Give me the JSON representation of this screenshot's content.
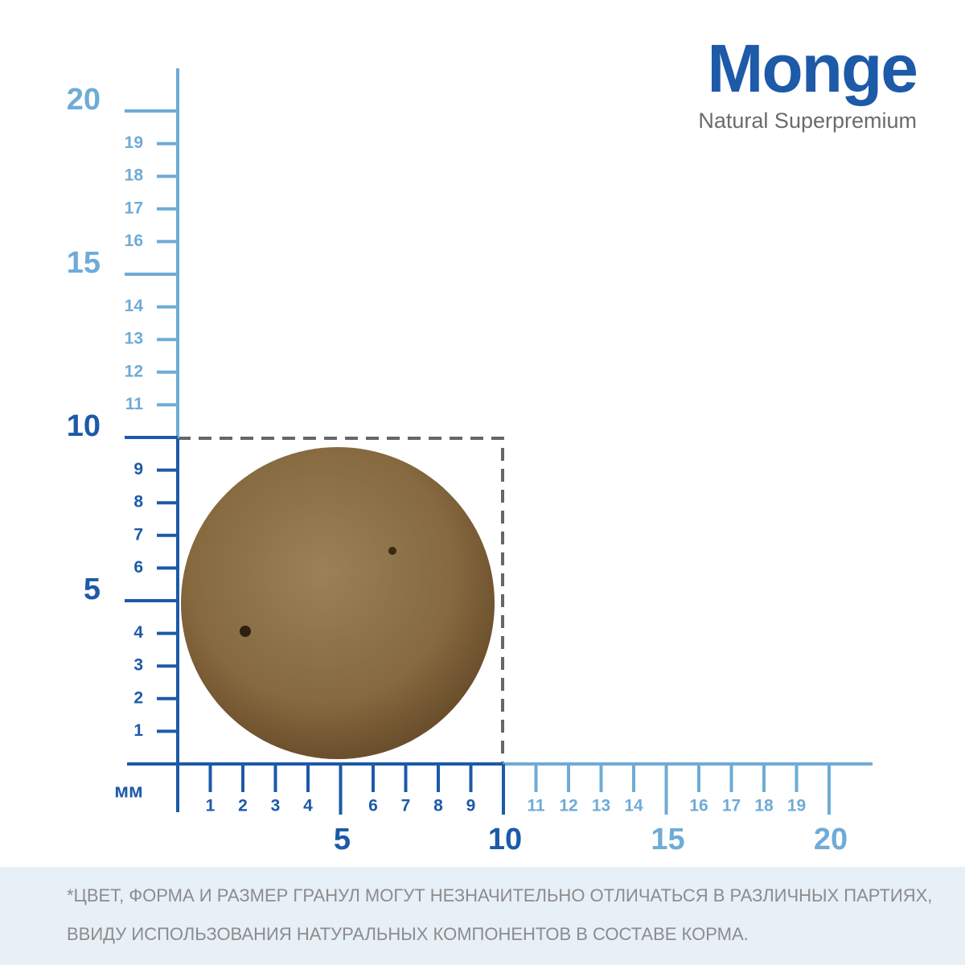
{
  "logo": {
    "brand": "Monge",
    "tagline": "Natural Superpremium"
  },
  "ruler": {
    "unit": "мм",
    "vertical_ticks": [
      1,
      2,
      3,
      4,
      5,
      6,
      7,
      8,
      9,
      10,
      11,
      12,
      13,
      14,
      15,
      16,
      17,
      18,
      19,
      20
    ],
    "horizontal_ticks": [
      1,
      2,
      3,
      4,
      5,
      6,
      7,
      8,
      9,
      10,
      11,
      12,
      13,
      14,
      15,
      16,
      17,
      18,
      19,
      20
    ]
  },
  "disclaimer": [
    "*ЦВЕТ, ФОРМА И РАЗМЕР ГРАНУЛ МОГУТ НЕЗНАЧИТЕЛЬНО ОТЛИЧАТЬСЯ В РАЗЛИЧНЫХ ПАРТИЯХ,",
    "ВВИДУ ИСПОЛЬЗОВАНИЯ НАТУРАЛЬНЫХ КОМПОНЕНТОВ В СОСТАВЕ КОРМА."
  ]
}
